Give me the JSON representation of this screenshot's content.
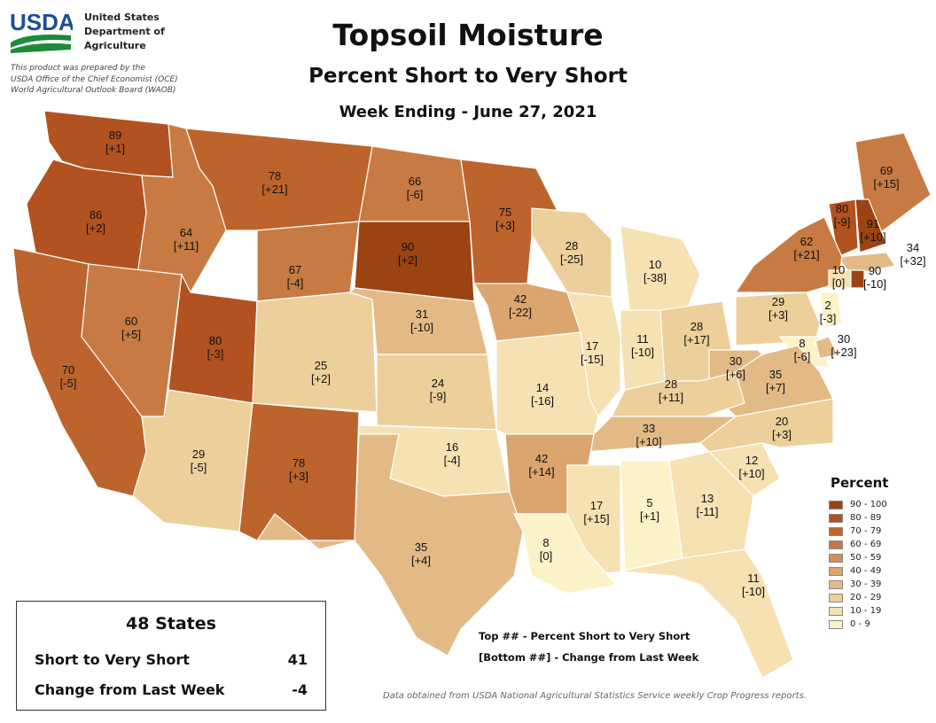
{
  "header": {
    "agency_lines": [
      "United States",
      "Department of",
      "Agriculture"
    ],
    "logo_text": "USDA",
    "prepared_lines": [
      "This product was prepared by the",
      "USDA Office of the Chief Economist (OCE)",
      "World Agricultural Outlook Board (WAOB)"
    ],
    "title": "Topsoil Moisture",
    "subtitle": "Percent Short to Very Short",
    "week": "Week Ending - June 27, 2021"
  },
  "legend": {
    "title": "Percent",
    "items": [
      {
        "label": "90 - 100",
        "color": "#9c4312"
      },
      {
        "label": "80 - 89",
        "color": "#b25220"
      },
      {
        "label": "70 - 79",
        "color": "#bc642c"
      },
      {
        "label": "60 - 69",
        "color": "#c77b42"
      },
      {
        "label": "50 - 59",
        "color": "#d28f58"
      },
      {
        "label": "40 - 49",
        "color": "#dba56e"
      },
      {
        "label": "30 - 39",
        "color": "#e3ba86"
      },
      {
        "label": "20 - 29",
        "color": "#edcf9c"
      },
      {
        "label": "10 - 19",
        "color": "#f5e1b2"
      },
      {
        "label": "0 - 9",
        "color": "#fbf2c8"
      }
    ]
  },
  "states": [
    {
      "id": "WA",
      "value": "89",
      "change": "[+1]"
    },
    {
      "id": "OR",
      "value": "86",
      "change": "[+2]"
    },
    {
      "id": "ID",
      "value": "64",
      "change": "[+11]"
    },
    {
      "id": "MT",
      "value": "78",
      "change": "[+21]"
    },
    {
      "id": "ND",
      "value": "66",
      "change": "[-6]"
    },
    {
      "id": "MN",
      "value": "75",
      "change": "[+3]"
    },
    {
      "id": "WY",
      "value": "67",
      "change": "[-4]"
    },
    {
      "id": "SD",
      "value": "90",
      "change": "[+2]"
    },
    {
      "id": "WI",
      "value": "28",
      "change": "[-25]"
    },
    {
      "id": "MI",
      "value": "10",
      "change": "[-38]"
    },
    {
      "id": "ME",
      "value": "69",
      "change": "[+15]"
    },
    {
      "id": "VT",
      "value": "80",
      "change": "[-9]"
    },
    {
      "id": "NH",
      "value": "91",
      "change": "[+10]"
    },
    {
      "id": "MA",
      "value": "34",
      "change": "[+32]"
    },
    {
      "id": "NY",
      "value": "62",
      "change": "[+21]"
    },
    {
      "id": "CT",
      "value": "10",
      "change": "[0]"
    },
    {
      "id": "RI",
      "value": "90",
      "change": "[-10]"
    },
    {
      "id": "CA",
      "value": "70",
      "change": "[-5]"
    },
    {
      "id": "NV",
      "value": "60",
      "change": "[+5]"
    },
    {
      "id": "UT",
      "value": "80",
      "change": "[-3]"
    },
    {
      "id": "CO",
      "value": "25",
      "change": "[+2]"
    },
    {
      "id": "NE",
      "value": "31",
      "change": "[-10]"
    },
    {
      "id": "IA",
      "value": "42",
      "change": "[-22]"
    },
    {
      "id": "IL",
      "value": "17",
      "change": "[-15]"
    },
    {
      "id": "IN",
      "value": "11",
      "change": "[-10]"
    },
    {
      "id": "OH",
      "value": "28",
      "change": "[+17]"
    },
    {
      "id": "PA",
      "value": "29",
      "change": "[+3]"
    },
    {
      "id": "NJ",
      "value": "2",
      "change": "[-3]"
    },
    {
      "id": "MD",
      "value": "8",
      "change": "[-6]"
    },
    {
      "id": "DE",
      "value": "30",
      "change": "[+23]"
    },
    {
      "id": "WV",
      "value": "30",
      "change": "[+6]"
    },
    {
      "id": "VA",
      "value": "35",
      "change": "[+7]"
    },
    {
      "id": "KS",
      "value": "24",
      "change": "[-9]"
    },
    {
      "id": "MO",
      "value": "14",
      "change": "[-16]"
    },
    {
      "id": "KY",
      "value": "28",
      "change": "[+11]"
    },
    {
      "id": "TN",
      "value": "33",
      "change": "[+10]"
    },
    {
      "id": "NC",
      "value": "20",
      "change": "[+3]"
    },
    {
      "id": "SC",
      "value": "12",
      "change": "[+10]"
    },
    {
      "id": "AZ",
      "value": "29",
      "change": "[-5]"
    },
    {
      "id": "NM",
      "value": "78",
      "change": "[+3]"
    },
    {
      "id": "OK",
      "value": "16",
      "change": "[-4]"
    },
    {
      "id": "AR",
      "value": "42",
      "change": "[+14]"
    },
    {
      "id": "MS",
      "value": "17",
      "change": "[+15]"
    },
    {
      "id": "AL",
      "value": "5",
      "change": "[+1]"
    },
    {
      "id": "GA",
      "value": "13",
      "change": "[-11]"
    },
    {
      "id": "TX",
      "value": "35",
      "change": "[+4]"
    },
    {
      "id": "LA",
      "value": "8",
      "change": "[0]"
    },
    {
      "id": "FL",
      "value": "11",
      "change": "[-10]"
    }
  ],
  "summary": {
    "title": "48 States",
    "rows": [
      {
        "label": "Short to Very Short",
        "value": "41"
      },
      {
        "label": "Change from Last Week",
        "value": "-4"
      }
    ]
  },
  "notes": {
    "top": "Top ## - Percent Short to Very Short",
    "bottom": "[Bottom ##] - Change from Last Week"
  },
  "source": "Data obtained from USDA National Agricultural Statistics Service weekly Crop Progress reports."
}
